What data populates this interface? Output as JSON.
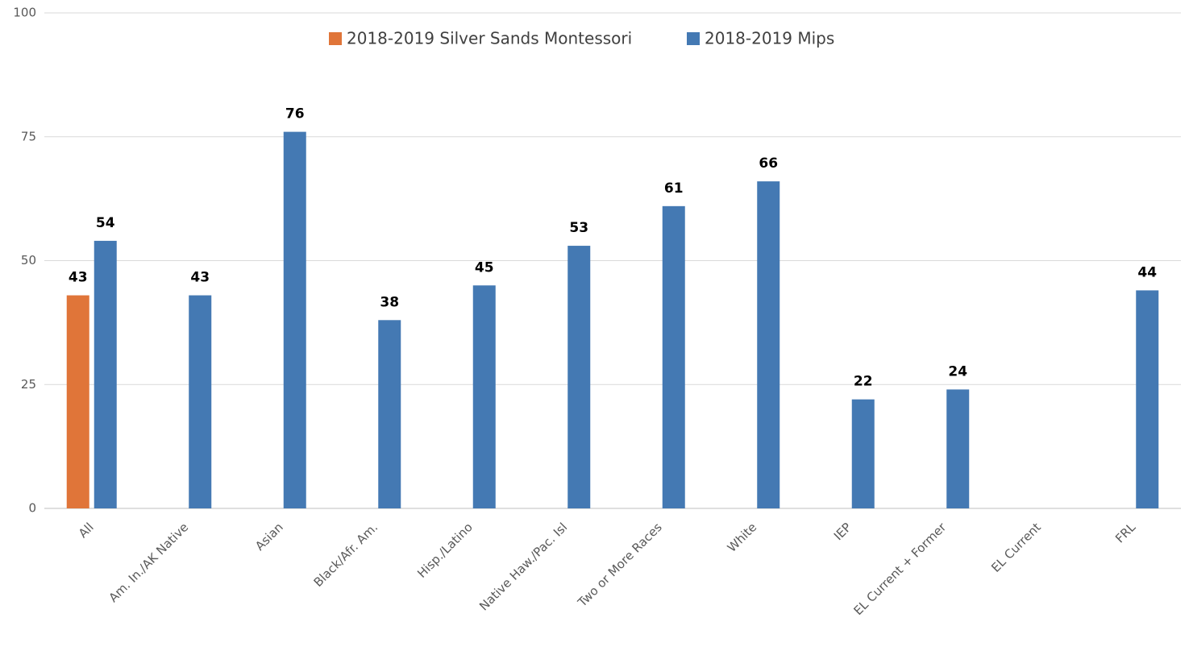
{
  "chart_data": {
    "type": "bar",
    "categories": [
      "All",
      "Am. In./AK Native",
      "Asian",
      "Black/Afr. Am.",
      "Hisp./Latino",
      "Native Haw./Pac. Isl",
      "Two or More Races",
      "White",
      "IEP",
      "EL Current + Former",
      "EL Current",
      "FRL"
    ],
    "series": [
      {
        "name": "2018-2019 Silver Sands Montessori",
        "color": "#e07539",
        "values": [
          43,
          null,
          null,
          null,
          null,
          null,
          null,
          null,
          null,
          null,
          null,
          null
        ]
      },
      {
        "name": "2018-2019 Mips",
        "color": "#4479b3",
        "values": [
          54,
          43,
          76,
          38,
          45,
          53,
          61,
          66,
          22,
          24,
          null,
          44
        ]
      }
    ],
    "ylim": [
      0,
      100
    ],
    "yticks": [
      0,
      25,
      50,
      75,
      100
    ],
    "grid": true,
    "legend": "top"
  }
}
